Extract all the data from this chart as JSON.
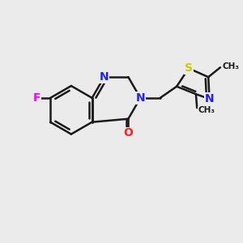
{
  "background_color": "#ebebeb",
  "bond_color": "#1a1a1a",
  "bond_width": 1.8,
  "atom_colors": {
    "N": "#2020ff",
    "O": "#ff2020",
    "F": "#ff00ff",
    "S": "#cccc00",
    "C": "#1a1a1a"
  },
  "font_size": 10,
  "figsize": [
    3.0,
    3.0
  ],
  "dpi": 100
}
